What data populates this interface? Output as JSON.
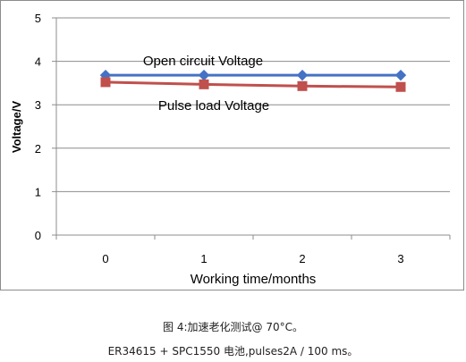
{
  "chart_data": {
    "type": "line",
    "categories": [
      "0",
      "1",
      "2",
      "3"
    ],
    "series": [
      {
        "name": "Open circuit Voltage",
        "values": [
          3.68,
          3.68,
          3.68,
          3.68
        ],
        "color": "#4472c4",
        "marker": "diamond"
      },
      {
        "name": "Pulse load Voltage",
        "values": [
          3.52,
          3.47,
          3.43,
          3.41
        ],
        "color": "#c0504d",
        "marker": "square"
      }
    ],
    "xlabel": "Working time/months",
    "ylabel": "Voltage/V",
    "ylim": [
      0,
      5
    ],
    "yticks": [
      "0",
      "1",
      "2",
      "3",
      "4",
      "5"
    ],
    "grid": true
  },
  "caption": {
    "line1": "图 4:加速老化测试@ 70°C。",
    "line2": "ER34615 + SPC1550 电池,pulses2A / 100 ms。"
  }
}
